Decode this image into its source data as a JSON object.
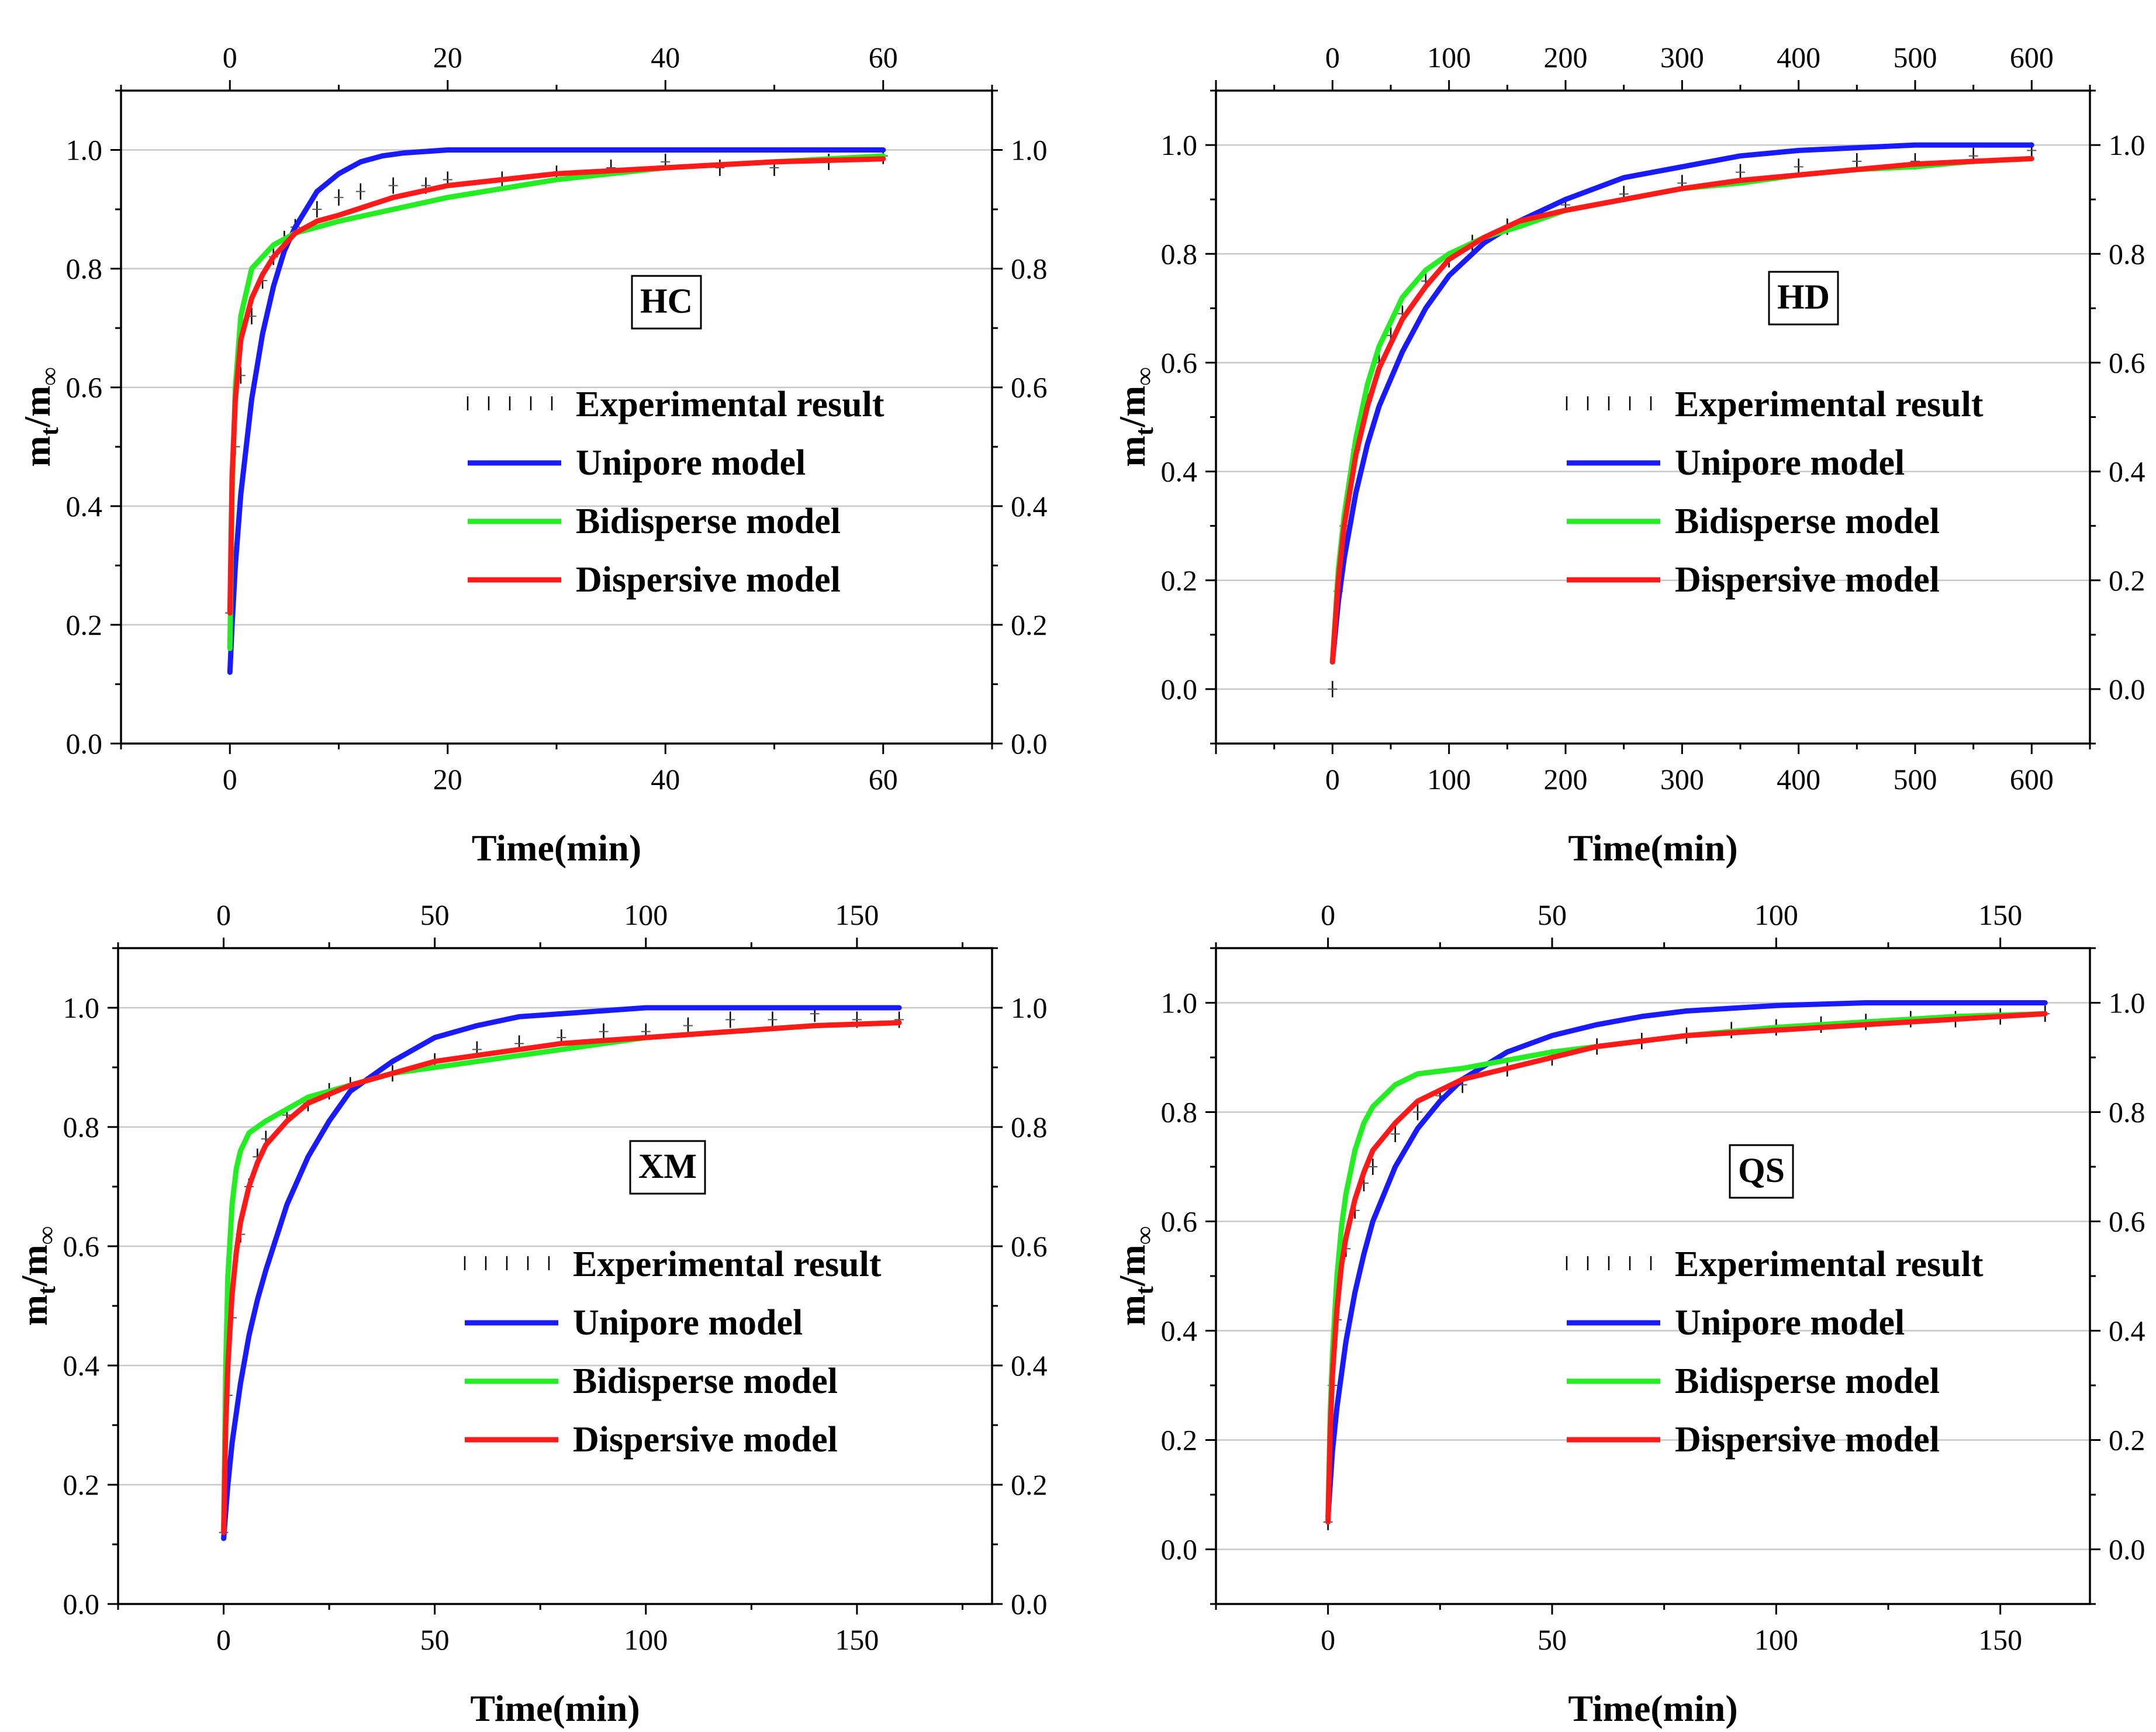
{
  "chart_data": [
    {
      "type": "line",
      "label": "HC",
      "xlabel": "Time(min)",
      "ylabel": "m_t/m_∞",
      "ylabel_main": "m",
      "ylabel_sub": "t",
      "ylabel_rest": "/m",
      "ylabel_inf": "∞",
      "xlim": [
        -10,
        70
      ],
      "ylim": [
        0,
        1.1
      ],
      "xticks": [
        0,
        20,
        40,
        60
      ],
      "yticks": [
        0.0,
        0.2,
        0.4,
        0.6,
        0.8,
        1.0
      ],
      "ytick_labels": [
        "0.0",
        "0.2",
        "0.4",
        "0.6",
        "0.8",
        "1.0"
      ],
      "grid": true,
      "legend": [
        "Experimental result",
        "Unipore model",
        "Bidisperse model",
        "Dispersive model"
      ],
      "series": [
        {
          "name": "Experimental result",
          "style": "ticks",
          "color": "#000000",
          "x": [
            0,
            0.5,
            1,
            2,
            3,
            4,
            5,
            6,
            8,
            10,
            12,
            15,
            18,
            20,
            25,
            30,
            35,
            40,
            45,
            50,
            55,
            60
          ],
          "y": [
            0.22,
            0.5,
            0.62,
            0.72,
            0.78,
            0.82,
            0.85,
            0.87,
            0.9,
            0.92,
            0.93,
            0.94,
            0.94,
            0.95,
            0.95,
            0.96,
            0.97,
            0.98,
            0.97,
            0.97,
            0.98,
            0.99
          ]
        },
        {
          "name": "Unipore model",
          "style": "line",
          "color": "#1a1aff",
          "x": [
            0,
            0.2,
            0.5,
            1,
            2,
            3,
            4,
            5,
            6,
            8,
            10,
            12,
            14,
            16,
            20,
            30,
            40,
            50,
            60
          ],
          "y": [
            0.12,
            0.2,
            0.3,
            0.42,
            0.58,
            0.69,
            0.77,
            0.83,
            0.87,
            0.93,
            0.96,
            0.98,
            0.99,
            0.995,
            1.0,
            1.0,
            1.0,
            1.0,
            1.0
          ]
        },
        {
          "name": "Bidisperse model",
          "style": "line",
          "color": "#22ee22",
          "x": [
            0,
            0.2,
            0.5,
            1,
            2,
            3,
            4,
            5,
            6,
            8,
            10,
            15,
            20,
            30,
            40,
            50,
            60
          ],
          "y": [
            0.16,
            0.42,
            0.6,
            0.72,
            0.8,
            0.82,
            0.84,
            0.85,
            0.86,
            0.87,
            0.88,
            0.9,
            0.92,
            0.95,
            0.97,
            0.98,
            0.99
          ]
        },
        {
          "name": "Dispersive model",
          "style": "line",
          "color": "#ff1a1a",
          "x": [
            0,
            0.2,
            0.5,
            1,
            2,
            3,
            4,
            5,
            6,
            8,
            10,
            15,
            20,
            30,
            40,
            50,
            60
          ],
          "y": [
            0.22,
            0.45,
            0.58,
            0.68,
            0.75,
            0.79,
            0.82,
            0.84,
            0.86,
            0.88,
            0.89,
            0.92,
            0.94,
            0.96,
            0.97,
            0.98,
            0.985
          ]
        }
      ]
    },
    {
      "type": "line",
      "label": "HD",
      "xlabel": "Time(min)",
      "ylabel": "m_t/m_∞",
      "ylabel_main": "m",
      "ylabel_sub": "t",
      "ylabel_rest": "/m",
      "ylabel_inf": "∞",
      "xlim": [
        -100,
        650
      ],
      "ylim": [
        -0.1,
        1.1
      ],
      "xticks": [
        0,
        100,
        200,
        300,
        400,
        500,
        600
      ],
      "yticks": [
        0.0,
        0.2,
        0.4,
        0.6,
        0.8,
        1.0
      ],
      "ytick_labels": [
        "0.0",
        "0.2",
        "0.4",
        "0.6",
        "0.8",
        "1.0"
      ],
      "grid": true,
      "legend": [
        "Experimental result",
        "Unipore model",
        "Bidisperse model",
        "Dispersive model"
      ],
      "series": [
        {
          "name": "Experimental result",
          "style": "ticks",
          "color": "#000000",
          "x": [
            0,
            5,
            10,
            20,
            30,
            40,
            50,
            60,
            80,
            100,
            120,
            150,
            200,
            250,
            300,
            350,
            400,
            450,
            500,
            550,
            600
          ],
          "y": [
            0.0,
            0.18,
            0.3,
            0.44,
            0.53,
            0.6,
            0.65,
            0.69,
            0.75,
            0.79,
            0.82,
            0.85,
            0.89,
            0.91,
            0.93,
            0.95,
            0.96,
            0.97,
            0.97,
            0.98,
            0.99
          ]
        },
        {
          "name": "Unipore model",
          "style": "line",
          "color": "#1a1aff",
          "x": [
            0,
            5,
            10,
            20,
            30,
            40,
            60,
            80,
            100,
            130,
            160,
            200,
            250,
            300,
            350,
            400,
            450,
            500,
            550,
            600
          ],
          "y": [
            0.05,
            0.16,
            0.24,
            0.36,
            0.45,
            0.52,
            0.62,
            0.7,
            0.76,
            0.82,
            0.86,
            0.9,
            0.94,
            0.96,
            0.98,
            0.99,
            0.995,
            1.0,
            1.0,
            1.0
          ]
        },
        {
          "name": "Bidisperse model",
          "style": "line",
          "color": "#22ee22",
          "x": [
            0,
            5,
            10,
            20,
            30,
            40,
            60,
            80,
            100,
            130,
            160,
            200,
            250,
            300,
            350,
            400,
            450,
            500,
            550,
            600
          ],
          "y": [
            0.05,
            0.22,
            0.32,
            0.46,
            0.56,
            0.63,
            0.72,
            0.77,
            0.8,
            0.83,
            0.85,
            0.88,
            0.9,
            0.92,
            0.93,
            0.945,
            0.955,
            0.96,
            0.97,
            0.975
          ]
        },
        {
          "name": "Dispersive model",
          "style": "line",
          "color": "#ff1a1a",
          "x": [
            0,
            5,
            10,
            20,
            30,
            40,
            60,
            80,
            100,
            130,
            160,
            200,
            250,
            300,
            350,
            400,
            450,
            500,
            550,
            600
          ],
          "y": [
            0.05,
            0.2,
            0.3,
            0.43,
            0.52,
            0.59,
            0.68,
            0.74,
            0.79,
            0.83,
            0.86,
            0.88,
            0.9,
            0.92,
            0.935,
            0.945,
            0.955,
            0.965,
            0.97,
            0.975
          ]
        }
      ]
    },
    {
      "type": "line",
      "label": "XM",
      "xlabel": "Time(min)",
      "ylabel": "m_t/m_∞",
      "ylabel_main": "m",
      "ylabel_sub": "t",
      "ylabel_rest": "/m",
      "ylabel_inf": "∞",
      "xlim": [
        -25,
        182
      ],
      "ylim": [
        0,
        1.1
      ],
      "xticks": [
        0,
        50,
        100,
        150
      ],
      "yticks": [
        0.0,
        0.2,
        0.4,
        0.6,
        0.8,
        1.0
      ],
      "ytick_labels": [
        "0.0",
        "0.2",
        "0.4",
        "0.6",
        "0.8",
        "1.0"
      ],
      "grid": true,
      "legend": [
        "Experimental result",
        "Unipore model",
        "Bidisperse model",
        "Dispersive model"
      ],
      "series": [
        {
          "name": "Experimental result",
          "style": "ticks",
          "color": "#000000",
          "x": [
            0,
            1,
            2,
            4,
            6,
            8,
            10,
            15,
            20,
            25,
            30,
            40,
            50,
            60,
            70,
            80,
            90,
            100,
            110,
            120,
            130,
            140,
            150,
            160
          ],
          "y": [
            0.12,
            0.35,
            0.48,
            0.62,
            0.7,
            0.75,
            0.78,
            0.82,
            0.84,
            0.86,
            0.87,
            0.89,
            0.91,
            0.93,
            0.94,
            0.95,
            0.96,
            0.96,
            0.97,
            0.98,
            0.98,
            0.99,
            0.98,
            0.98
          ]
        },
        {
          "name": "Unipore model",
          "style": "line",
          "color": "#1a1aff",
          "x": [
            0,
            1,
            2,
            4,
            6,
            8,
            10,
            15,
            20,
            25,
            30,
            40,
            50,
            60,
            70,
            80,
            90,
            100,
            120,
            140,
            160
          ],
          "y": [
            0.11,
            0.2,
            0.27,
            0.37,
            0.45,
            0.51,
            0.56,
            0.67,
            0.75,
            0.81,
            0.86,
            0.91,
            0.95,
            0.97,
            0.985,
            0.99,
            0.995,
            1.0,
            1.0,
            1.0,
            1.0
          ]
        },
        {
          "name": "Bidisperse model",
          "style": "line",
          "color": "#22ee22",
          "x": [
            0,
            0.5,
            1,
            2,
            3,
            4,
            6,
            8,
            10,
            15,
            20,
            30,
            40,
            50,
            60,
            80,
            100,
            120,
            140,
            160
          ],
          "y": [
            0.12,
            0.4,
            0.55,
            0.67,
            0.73,
            0.76,
            0.79,
            0.8,
            0.81,
            0.83,
            0.85,
            0.87,
            0.89,
            0.9,
            0.91,
            0.93,
            0.95,
            0.96,
            0.97,
            0.975
          ]
        },
        {
          "name": "Dispersive model",
          "style": "line",
          "color": "#ff1a1a",
          "x": [
            0,
            0.5,
            1,
            2,
            3,
            4,
            6,
            8,
            10,
            15,
            20,
            30,
            40,
            50,
            60,
            80,
            100,
            120,
            140,
            160
          ],
          "y": [
            0.12,
            0.3,
            0.4,
            0.52,
            0.59,
            0.64,
            0.7,
            0.74,
            0.77,
            0.81,
            0.84,
            0.87,
            0.89,
            0.91,
            0.92,
            0.94,
            0.95,
            0.96,
            0.97,
            0.975
          ]
        }
      ]
    },
    {
      "type": "line",
      "label": "QS",
      "xlabel": "Time(min)",
      "ylabel": "m_t/m_∞",
      "ylabel_main": "m",
      "ylabel_sub": "t",
      "ylabel_rest": "/m",
      "ylabel_inf": "∞",
      "xlim": [
        -25,
        170
      ],
      "ylim": [
        -0.1,
        1.1
      ],
      "xticks": [
        0,
        50,
        100,
        150
      ],
      "yticks": [
        0.0,
        0.2,
        0.4,
        0.6,
        0.8,
        1.0
      ],
      "ytick_labels": [
        "0.0",
        "0.2",
        "0.4",
        "0.6",
        "0.8",
        "1.0"
      ],
      "grid": true,
      "legend": [
        "Experimental result",
        "Unipore model",
        "Bidisperse model",
        "Dispersive model"
      ],
      "series": [
        {
          "name": "Experimental result",
          "style": "ticks",
          "color": "#000000",
          "x": [
            0,
            1,
            2,
            4,
            6,
            8,
            10,
            15,
            20,
            25,
            30,
            40,
            50,
            60,
            70,
            80,
            90,
            100,
            110,
            120,
            130,
            140,
            150,
            160
          ],
          "y": [
            0.05,
            0.3,
            0.42,
            0.55,
            0.62,
            0.67,
            0.7,
            0.76,
            0.8,
            0.83,
            0.85,
            0.88,
            0.9,
            0.92,
            0.93,
            0.94,
            0.95,
            0.955,
            0.96,
            0.965,
            0.97,
            0.97,
            0.975,
            0.98
          ]
        },
        {
          "name": "Unipore model",
          "style": "line",
          "color": "#1a1aff",
          "x": [
            0,
            1,
            2,
            4,
            6,
            8,
            10,
            15,
            20,
            25,
            30,
            40,
            50,
            60,
            70,
            80,
            90,
            100,
            120,
            140,
            160
          ],
          "y": [
            0.06,
            0.18,
            0.26,
            0.38,
            0.47,
            0.54,
            0.6,
            0.7,
            0.77,
            0.82,
            0.86,
            0.91,
            0.94,
            0.96,
            0.975,
            0.985,
            0.99,
            0.995,
            1.0,
            1.0,
            1.0
          ]
        },
        {
          "name": "Bidisperse model",
          "style": "line",
          "color": "#22ee22",
          "x": [
            0,
            0.5,
            1,
            2,
            3,
            4,
            6,
            8,
            10,
            15,
            20,
            30,
            40,
            50,
            60,
            80,
            100,
            120,
            140,
            160
          ],
          "y": [
            0.06,
            0.25,
            0.36,
            0.5,
            0.59,
            0.65,
            0.73,
            0.78,
            0.81,
            0.85,
            0.87,
            0.88,
            0.895,
            0.91,
            0.92,
            0.94,
            0.955,
            0.965,
            0.975,
            0.98
          ]
        },
        {
          "name": "Dispersive model",
          "style": "line",
          "color": "#ff1a1a",
          "x": [
            0,
            0.5,
            1,
            2,
            3,
            4,
            6,
            8,
            10,
            15,
            20,
            30,
            40,
            50,
            60,
            80,
            100,
            120,
            140,
            160
          ],
          "y": [
            0.05,
            0.22,
            0.32,
            0.44,
            0.52,
            0.57,
            0.64,
            0.69,
            0.73,
            0.78,
            0.82,
            0.86,
            0.88,
            0.9,
            0.92,
            0.94,
            0.95,
            0.96,
            0.97,
            0.98
          ]
        }
      ]
    }
  ]
}
